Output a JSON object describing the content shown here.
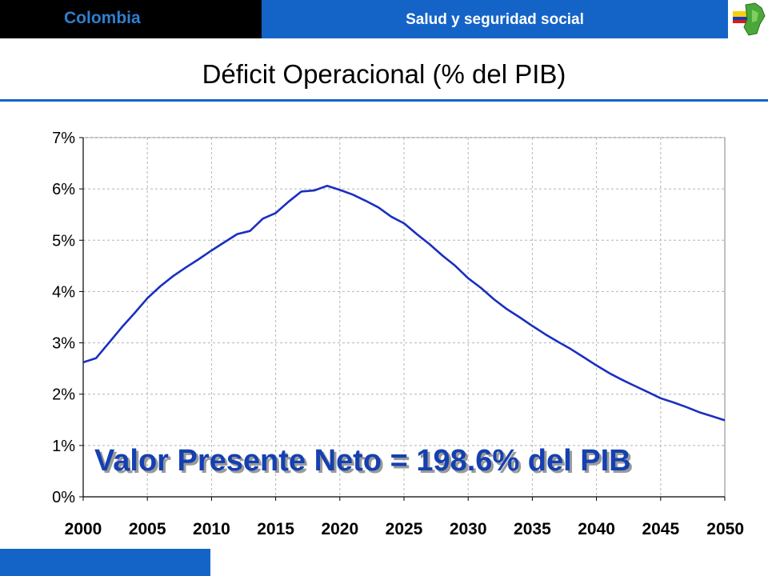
{
  "header": {
    "country": "Colombia",
    "section": "Salud y seguridad social",
    "logo_icon": "colombia-map-flag-icon"
  },
  "colors": {
    "header_blue": "#1464c8",
    "line": "#1a2fc0",
    "annotation": "#1440b0"
  },
  "chart_data": {
    "type": "line",
    "title": "Déficit Operacional (% del PIB)",
    "xlabel": "",
    "ylabel": "",
    "xlim": [
      2000,
      2050
    ],
    "ylim": [
      0,
      7
    ],
    "x_ticks": [
      "2000",
      "2005",
      "2010",
      "2015",
      "2020",
      "2025",
      "2030",
      "2035",
      "2040",
      "2045",
      "2050"
    ],
    "y_ticks": [
      "0%",
      "1%",
      "2%",
      "3%",
      "4%",
      "5%",
      "6%",
      "7%"
    ],
    "grid": "dashed",
    "legend": "none",
    "annotation": "Valor Presente Neto = 198.6% del PIB",
    "series": [
      {
        "x": [
          2000,
          2001,
          2002,
          2003,
          2004,
          2005,
          2006,
          2007,
          2008,
          2009,
          2010,
          2011,
          2012,
          2013,
          2014,
          2015,
          2016,
          2017,
          2018,
          2019,
          2020,
          2021,
          2022,
          2023,
          2024,
          2025,
          2026,
          2027,
          2028,
          2029,
          2030,
          2031,
          2032,
          2033,
          2034,
          2035,
          2036,
          2037,
          2038,
          2039,
          2040,
          2041,
          2042,
          2043,
          2044,
          2045,
          2046,
          2047,
          2048,
          2049,
          2050
        ],
        "values": [
          2.62,
          2.7,
          3.0,
          3.3,
          3.58,
          3.87,
          4.1,
          4.3,
          4.47,
          4.63,
          4.8,
          4.96,
          5.12,
          5.18,
          5.42,
          5.53,
          5.75,
          5.95,
          5.97,
          6.06,
          5.98,
          5.89,
          5.77,
          5.64,
          5.46,
          5.33,
          5.12,
          4.92,
          4.7,
          4.5,
          4.26,
          4.07,
          3.85,
          3.66,
          3.5,
          3.33,
          3.17,
          3.02,
          2.88,
          2.72,
          2.56,
          2.41,
          2.28,
          2.16,
          2.04,
          1.92,
          1.84,
          1.75,
          1.65,
          1.57,
          1.49
        ]
      }
    ]
  }
}
